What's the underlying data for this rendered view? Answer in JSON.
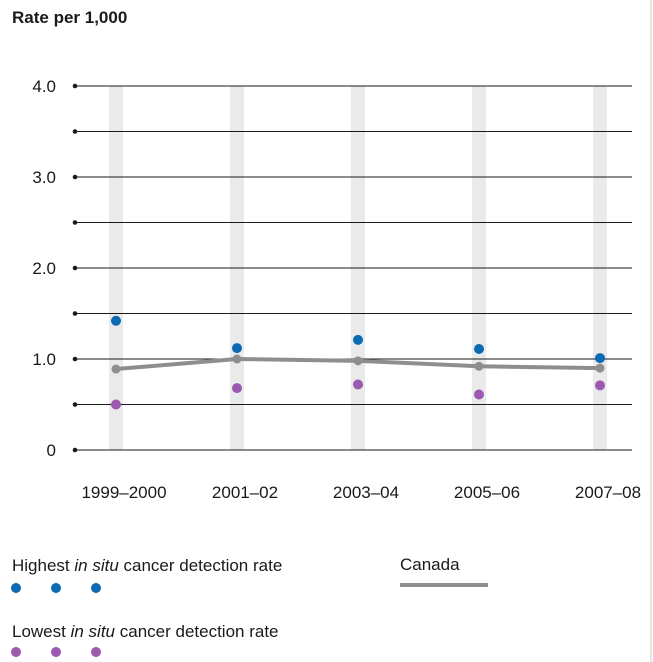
{
  "chart_data": {
    "type": "scatter",
    "ylabel": "Rate per 1,000",
    "categories": [
      "1999–2000",
      "2001–02",
      "2003–04",
      "2005–06",
      "2007–08"
    ],
    "ylim": [
      0,
      4.0
    ],
    "yticks": [
      {
        "value": 0,
        "label": "0"
      },
      {
        "value": 0.5,
        "label": ""
      },
      {
        "value": 1.0,
        "label": "1.0"
      },
      {
        "value": 1.5,
        "label": ""
      },
      {
        "value": 2.0,
        "label": "2.0"
      },
      {
        "value": 2.5,
        "label": ""
      },
      {
        "value": 3.0,
        "label": "3.0"
      },
      {
        "value": 3.5,
        "label": ""
      },
      {
        "value": 4.0,
        "label": "4.0"
      }
    ],
    "grid": true,
    "series": [
      {
        "key": "highest",
        "type": "scatter",
        "color": "#0a6bb3",
        "values": [
          1.42,
          1.12,
          1.21,
          1.11,
          1.01
        ]
      },
      {
        "key": "lowest",
        "type": "scatter",
        "color": "#9b59b0",
        "values": [
          0.5,
          0.68,
          0.72,
          0.61,
          0.71
        ]
      },
      {
        "key": "canada",
        "type": "line",
        "color": "#8e8e8e",
        "values": [
          0.89,
          1.0,
          0.98,
          0.92,
          0.9
        ]
      }
    ]
  },
  "legend": {
    "highest": {
      "before": "Highest ",
      "italic": "in situ",
      "after": " cancer detection rate"
    },
    "lowest": {
      "before": "Lowest ",
      "italic": "in situ",
      "after": " cancer detection rate"
    },
    "canada": {
      "label": "Canada"
    }
  }
}
